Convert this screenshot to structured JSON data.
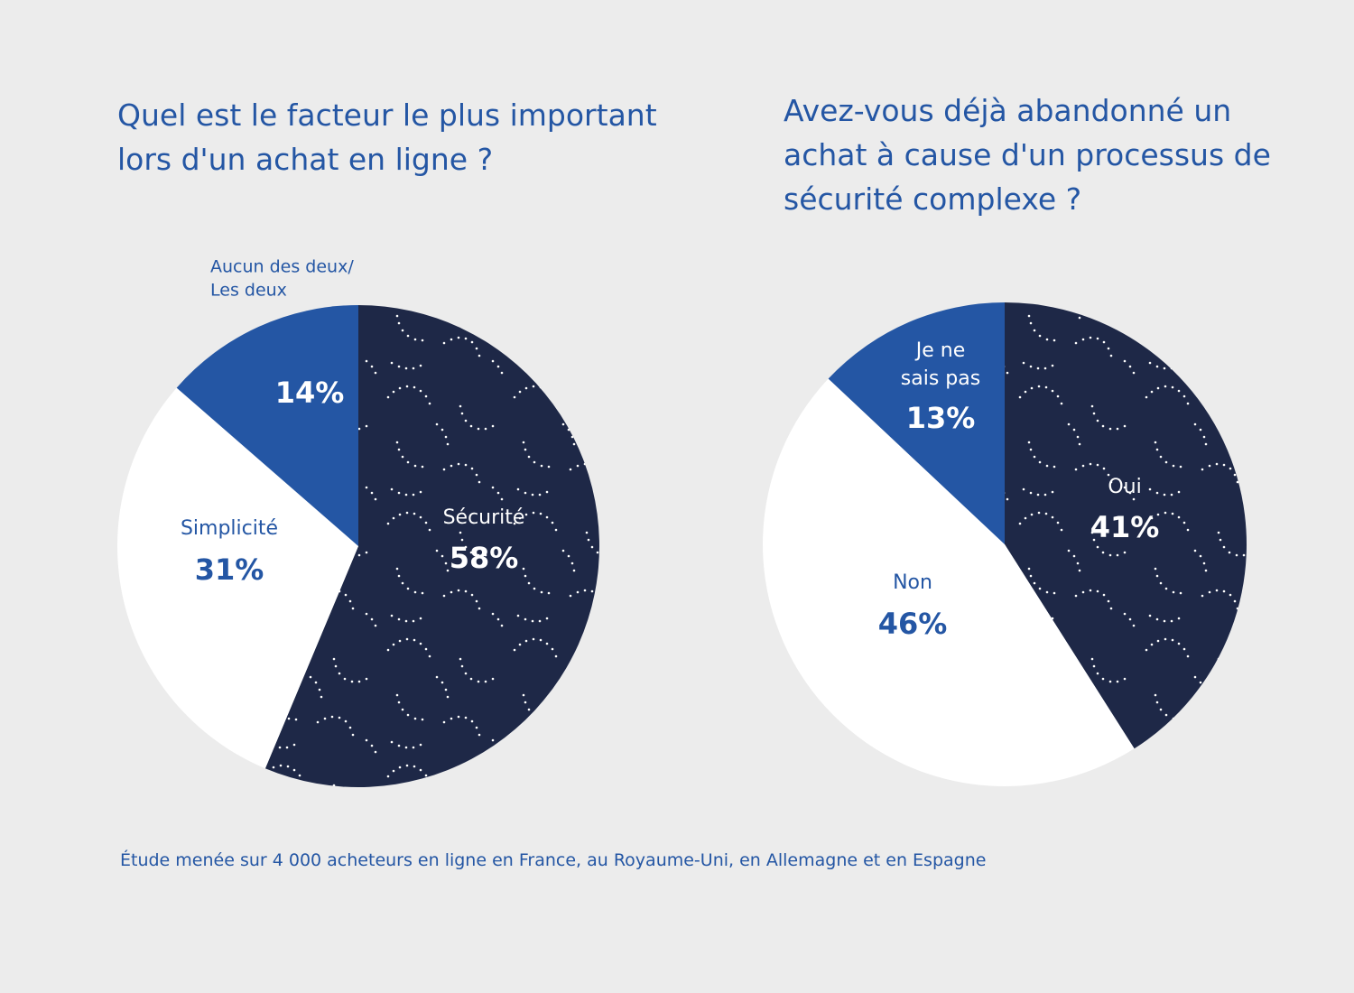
{
  "chart_data": [
    {
      "type": "pie",
      "title": "Quel est le facteur le plus important lors d'un achat en ligne ?",
      "title_lines": [
        "Quel est le facteur le plus important",
        "lors d'un achat en ligne ?"
      ],
      "slices": [
        {
          "label": "Sécurité",
          "label_lines": [
            "Sécurité"
          ],
          "value": 58,
          "value_label": "58%",
          "color": "#1e2847",
          "text_color": "#ffffff",
          "pattern": "dots"
        },
        {
          "label": "Simplicité",
          "label_lines": [
            "Simplicité"
          ],
          "value": 31,
          "value_label": "31%",
          "color": "#ffffff",
          "text_color": "#2456a4"
        },
        {
          "label": "Aucun des deux/ Les deux",
          "label_lines": [
            "Aucun des deux/",
            "Les deux"
          ],
          "value": 14,
          "value_label": "14%",
          "color": "#2456a4",
          "text_color": "#ffffff",
          "label_outside": true
        }
      ]
    },
    {
      "type": "pie",
      "title": "Avez-vous déjà abandonné un achat à cause d'un processus de sécurité complexe ?",
      "title_lines": [
        "Avez-vous déjà abandonné un",
        "achat à cause d'un processus de",
        "sécurité complexe ?"
      ],
      "slices": [
        {
          "label": "Oui",
          "label_lines": [
            "Oui"
          ],
          "value": 41,
          "value_label": "41%",
          "color": "#1e2847",
          "text_color": "#ffffff",
          "pattern": "dots"
        },
        {
          "label": "Non",
          "label_lines": [
            "Non"
          ],
          "value": 46,
          "value_label": "46%",
          "color": "#ffffff",
          "text_color": "#2456a4"
        },
        {
          "label": "Je ne sais pas",
          "label_lines": [
            "Je ne",
            "sais pas"
          ],
          "value": 13,
          "value_label": "13%",
          "color": "#2456a4",
          "text_color": "#ffffff"
        }
      ]
    }
  ],
  "footnote": "Étude menée sur 4 000 acheteurs en ligne en France, au Royaume-Uni, en Allemagne et en Espagne"
}
